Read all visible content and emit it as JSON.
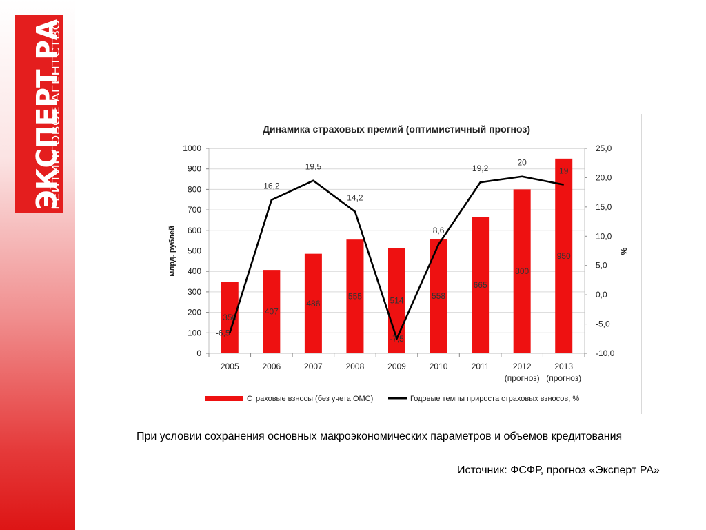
{
  "logo": {
    "main_text": "ЭКСПЕРТ РА",
    "sub_text": "РЕЙТИНГОВОЕ АГЕНТСТВО",
    "color": "#e41e1e"
  },
  "captions": {
    "main": "При условии сохранения основных макроэкономических параметров и объемов кредитования",
    "source": "Источник: ФСФР, прогноз «Эксперт РА»"
  },
  "chart_data": {
    "type": "bar",
    "title": "Динамика страховых премий (оптимистичный прогноз)",
    "ylabel": "млрд. рублей",
    "y2label": "%",
    "categories": [
      "2005",
      "2006",
      "2007",
      "2008",
      "2009",
      "2010",
      "2011",
      "2012",
      "2013"
    ],
    "category_sublabels": [
      "",
      "",
      "",
      "",
      "",
      "",
      "",
      "(прогноз)",
      "(прогноз)"
    ],
    "ylim": [
      0,
      1000
    ],
    "yticks": [
      "0",
      "100",
      "200",
      "300",
      "400",
      "500",
      "600",
      "700",
      "800",
      "900",
      "1000"
    ],
    "y2lim": [
      -10,
      25
    ],
    "y2ticks": [
      "-10,0",
      "-5,0",
      "0,0",
      "5,0",
      "10,0",
      "15,0",
      "20,0",
      "25,0"
    ],
    "grid": "horizontal",
    "legend_position": "bottom",
    "series": [
      {
        "name": "Страховые взносы (без учета ОМС)",
        "kind": "bar",
        "axis": "left",
        "color": "#ee1111",
        "values": [
          350,
          407,
          486,
          555,
          514,
          558,
          665,
          800,
          950
        ],
        "labels": [
          "350",
          "407",
          "486",
          "555",
          "514",
          "558",
          "665",
          "800",
          "950"
        ]
      },
      {
        "name": "Годовые темпы прироста страховых взносов, %",
        "kind": "line",
        "axis": "right",
        "color": "#000000",
        "values": [
          -6.5,
          16.2,
          19.5,
          14.2,
          -7.5,
          8.6,
          19.2,
          20.2,
          18.8
        ],
        "labels": [
          "-6,5",
          "16,2",
          "19,5",
          "14,2",
          "-7,5",
          "8,6",
          "19,2",
          "20",
          "19"
        ]
      }
    ]
  }
}
